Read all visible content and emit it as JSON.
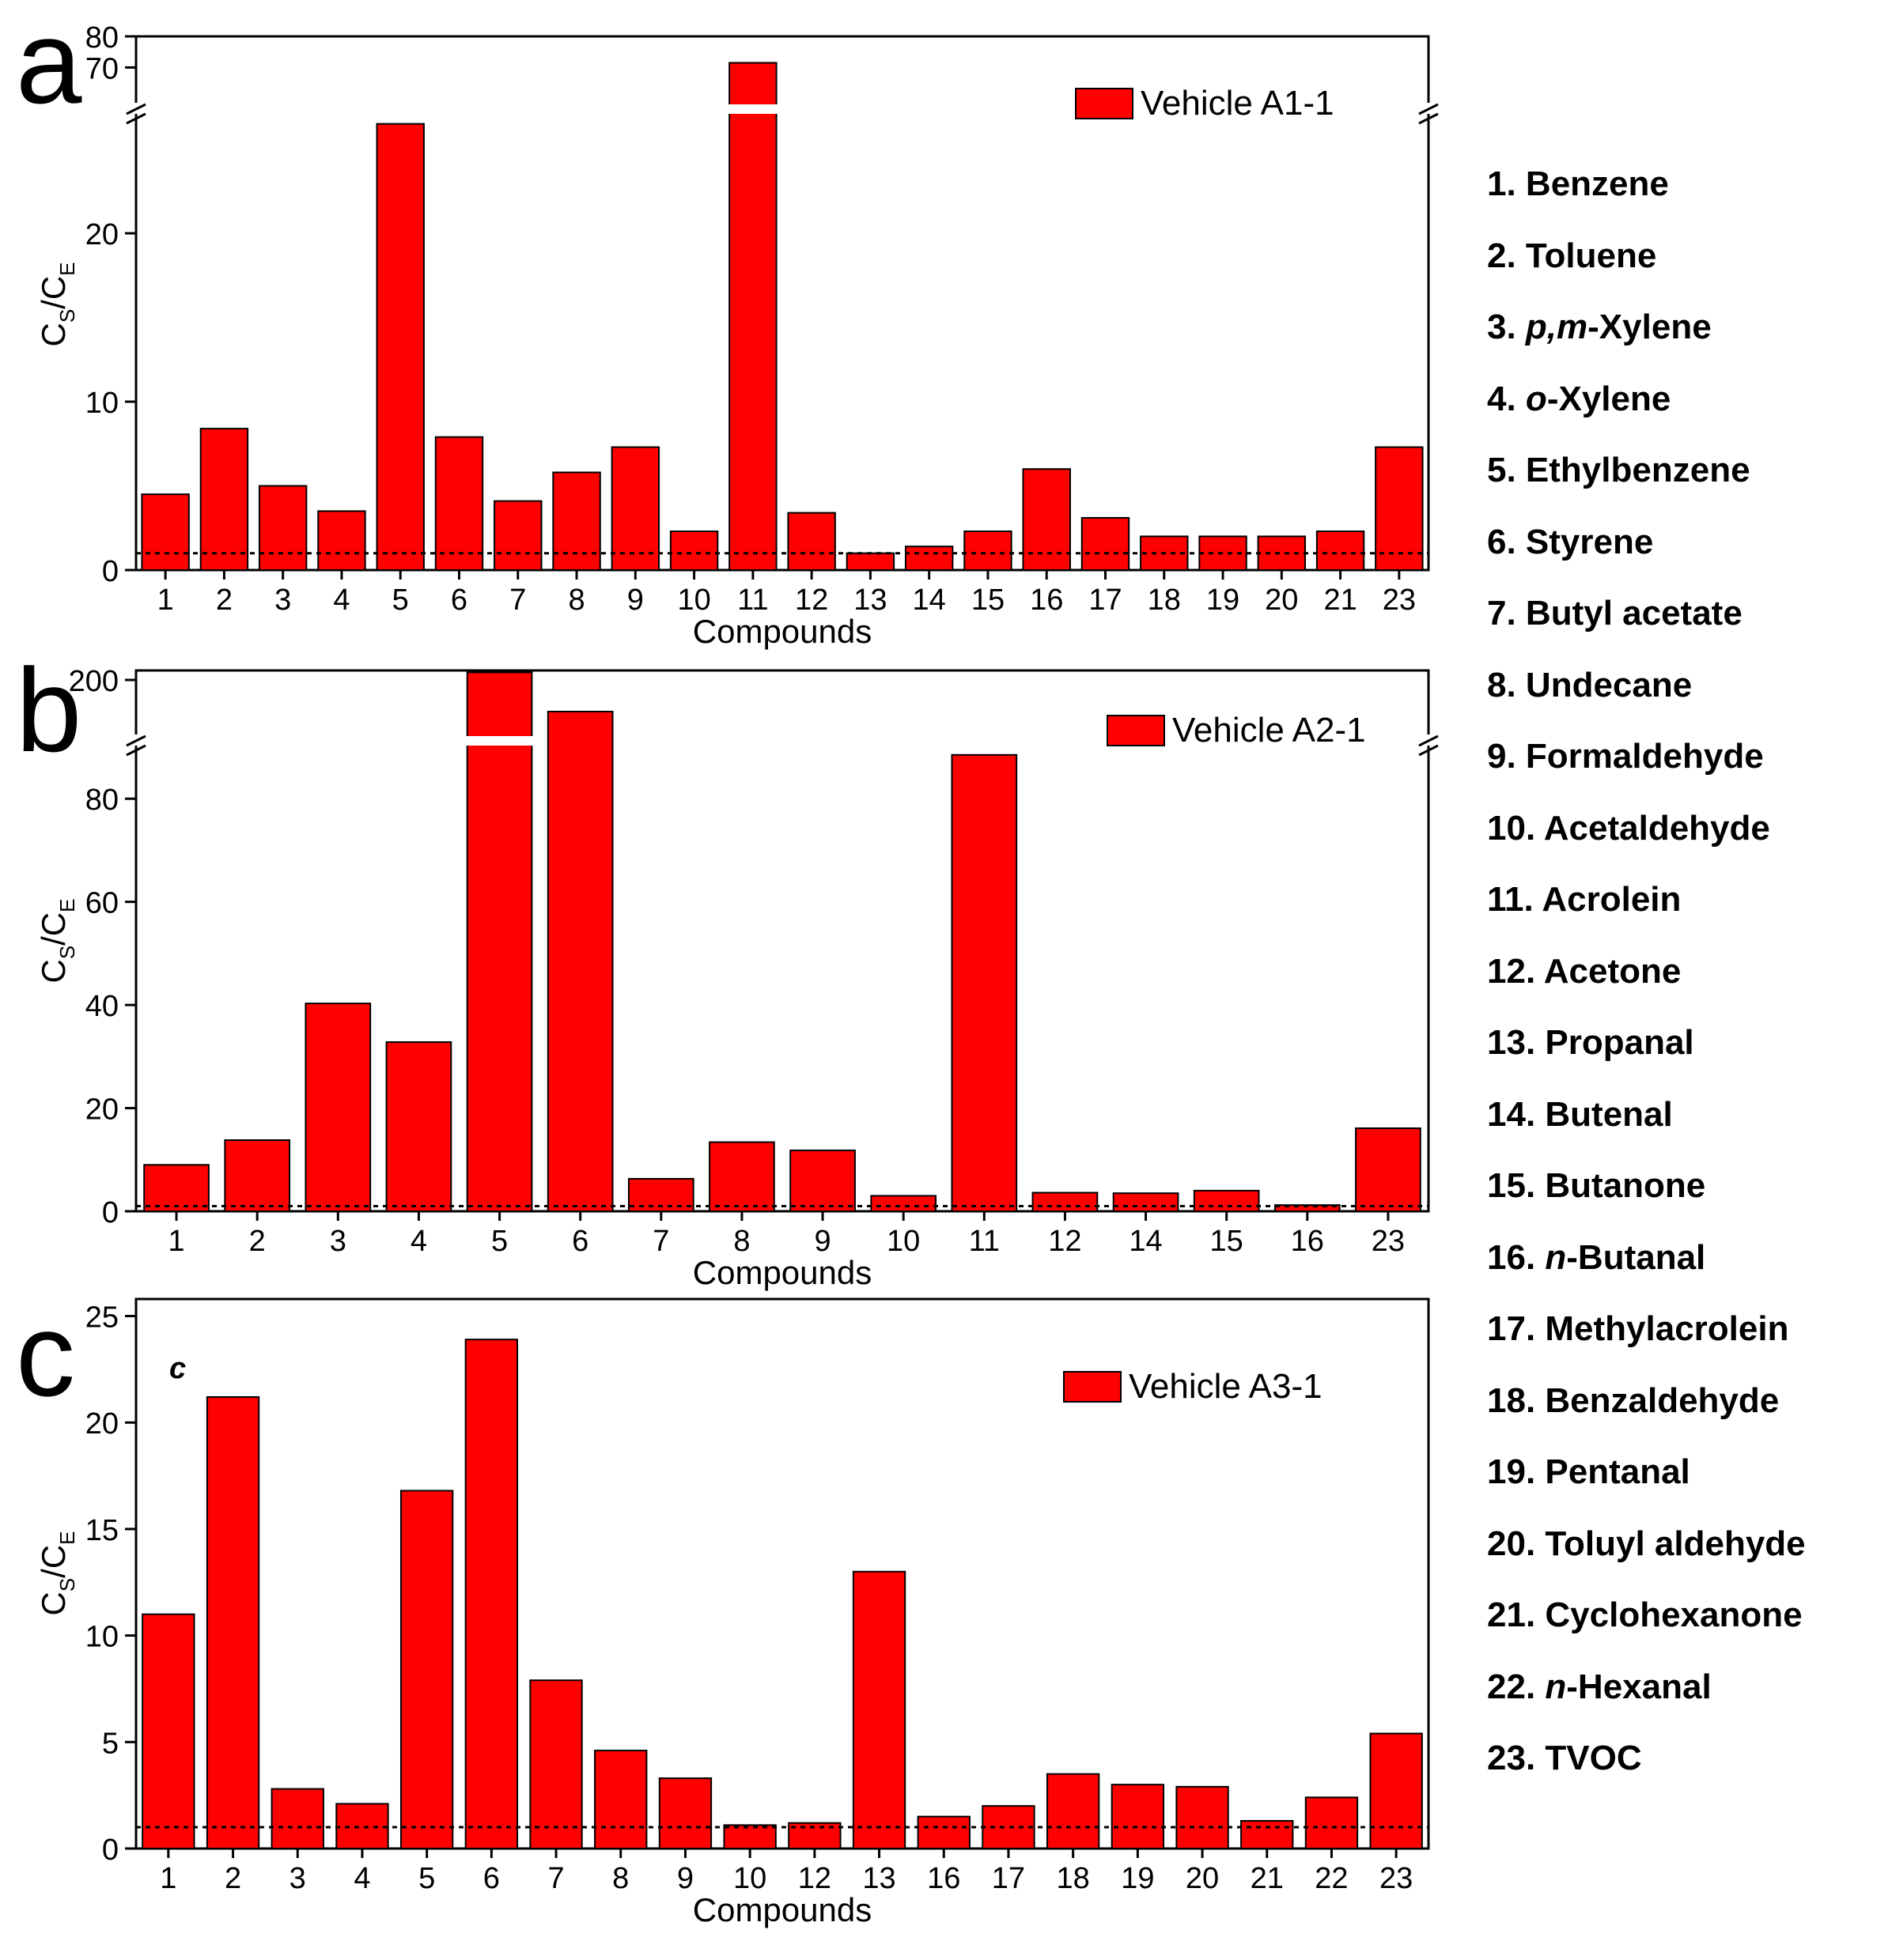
{
  "chart_data": [
    {
      "panel_label": "a",
      "type": "bar",
      "xlabel": "Compounds",
      "ylabel_main": "C",
      "ylabel_sub1": "S",
      "ylabel_sub2": "E",
      "categories": [
        "1",
        "2",
        "3",
        "4",
        "5",
        "6",
        "7",
        "8",
        "9",
        "10",
        "11",
        "12",
        "13",
        "14",
        "15",
        "16",
        "17",
        "18",
        "19",
        "20",
        "21",
        "23"
      ],
      "series": [
        {
          "name": "Vehicle A1-1",
          "values": [
            4.5,
            8.4,
            5.0,
            3.5,
            26.5,
            7.9,
            4.1,
            5.8,
            7.3,
            2.3,
            71.5,
            3.4,
            1.0,
            1.4,
            2.3,
            6.0,
            3.1,
            2.0,
            2.0,
            2.0,
            2.3,
            7.3
          ]
        }
      ],
      "y_break": [
        27,
        65
      ],
      "ylim_lower": [
        0,
        27
      ],
      "ylim_upper": [
        65,
        80
      ],
      "yticks": [
        0,
        10,
        20,
        70,
        80
      ],
      "reference_line": 1,
      "color": "#ff0000"
    },
    {
      "panel_label": "b",
      "type": "bar",
      "xlabel": "Compounds",
      "ylabel_main": "C",
      "ylabel_sub1": "S",
      "ylabel_sub2": "E",
      "categories": [
        "1",
        "2",
        "3",
        "4",
        "5",
        "6",
        "7",
        "8",
        "9",
        "10",
        "11",
        "12",
        "14",
        "15",
        "16",
        "23"
      ],
      "series": [
        {
          "name": "Vehicle A2-1",
          "values": [
            9,
            13.8,
            40.3,
            32.8,
            212,
            150,
            6.3,
            13.4,
            11.8,
            3.0,
            88.5,
            3.6,
            3.5,
            4.0,
            1.2,
            16.1
          ]
        }
      ],
      "y_break": [
        90,
        170
      ],
      "ylim_lower": [
        0,
        90
      ],
      "ylim_upper": [
        170,
        215
      ],
      "yticks": [
        0,
        20,
        40,
        60,
        80,
        200
      ],
      "reference_line": 1,
      "color": "#ff0000"
    },
    {
      "panel_label": "c",
      "inner_label": "c",
      "type": "bar",
      "xlabel": "Compounds",
      "ylabel_main": "C",
      "ylabel_sub1": "S",
      "ylabel_sub2": "E",
      "categories": [
        "1",
        "2",
        "3",
        "4",
        "5",
        "6",
        "7",
        "8",
        "9",
        "10",
        "12",
        "13",
        "16",
        "17",
        "18",
        "19",
        "20",
        "21",
        "22",
        "23"
      ],
      "series": [
        {
          "name": "Vehicle A3-1",
          "values": [
            11.0,
            21.2,
            2.8,
            2.1,
            16.8,
            23.9,
            7.9,
            4.6,
            3.3,
            1.1,
            1.2,
            13.0,
            1.5,
            2.0,
            3.5,
            3.0,
            2.9,
            1.3,
            2.4,
            5.4
          ]
        }
      ],
      "ylim": [
        0,
        25.8
      ],
      "yticks": [
        0,
        5,
        10,
        15,
        20,
        25
      ],
      "reference_line": 1,
      "color": "#ff0000"
    }
  ],
  "compound_legend": [
    [
      "1. ",
      "Benzene",
      ""
    ],
    [
      "2. ",
      "Toluene",
      ""
    ],
    [
      "3. ",
      "p,m",
      "-Xylene"
    ],
    [
      "4. ",
      "o",
      "-Xylene"
    ],
    [
      "5. ",
      "Ethylbenzene",
      ""
    ],
    [
      "6. ",
      "Styrene",
      ""
    ],
    [
      "7. ",
      "Butyl acetate",
      ""
    ],
    [
      "8. ",
      "Undecane",
      ""
    ],
    [
      "9. ",
      "Formaldehyde",
      ""
    ],
    [
      "10. ",
      "Acetaldehyde",
      ""
    ],
    [
      "11. ",
      "Acrolein",
      ""
    ],
    [
      "12. ",
      "Acetone",
      ""
    ],
    [
      "13. ",
      "Propanal",
      ""
    ],
    [
      "14. ",
      "Butenal",
      ""
    ],
    [
      "15. ",
      "Butanone",
      ""
    ],
    [
      "16. ",
      "n",
      "-Butanal"
    ],
    [
      "17. ",
      "Methylacrolein",
      ""
    ],
    [
      "18. ",
      "Benzaldehyde",
      ""
    ],
    [
      "19. ",
      "Pentanal",
      ""
    ],
    [
      "20. ",
      "Toluyl aldehyde",
      ""
    ],
    [
      "21. ",
      "Cyclohexanone",
      ""
    ],
    [
      "22. ",
      "n",
      "-Hexanal"
    ],
    [
      "23. ",
      "TVOC",
      ""
    ]
  ],
  "compound_legend_italic_index": [
    2,
    3,
    15,
    21
  ]
}
